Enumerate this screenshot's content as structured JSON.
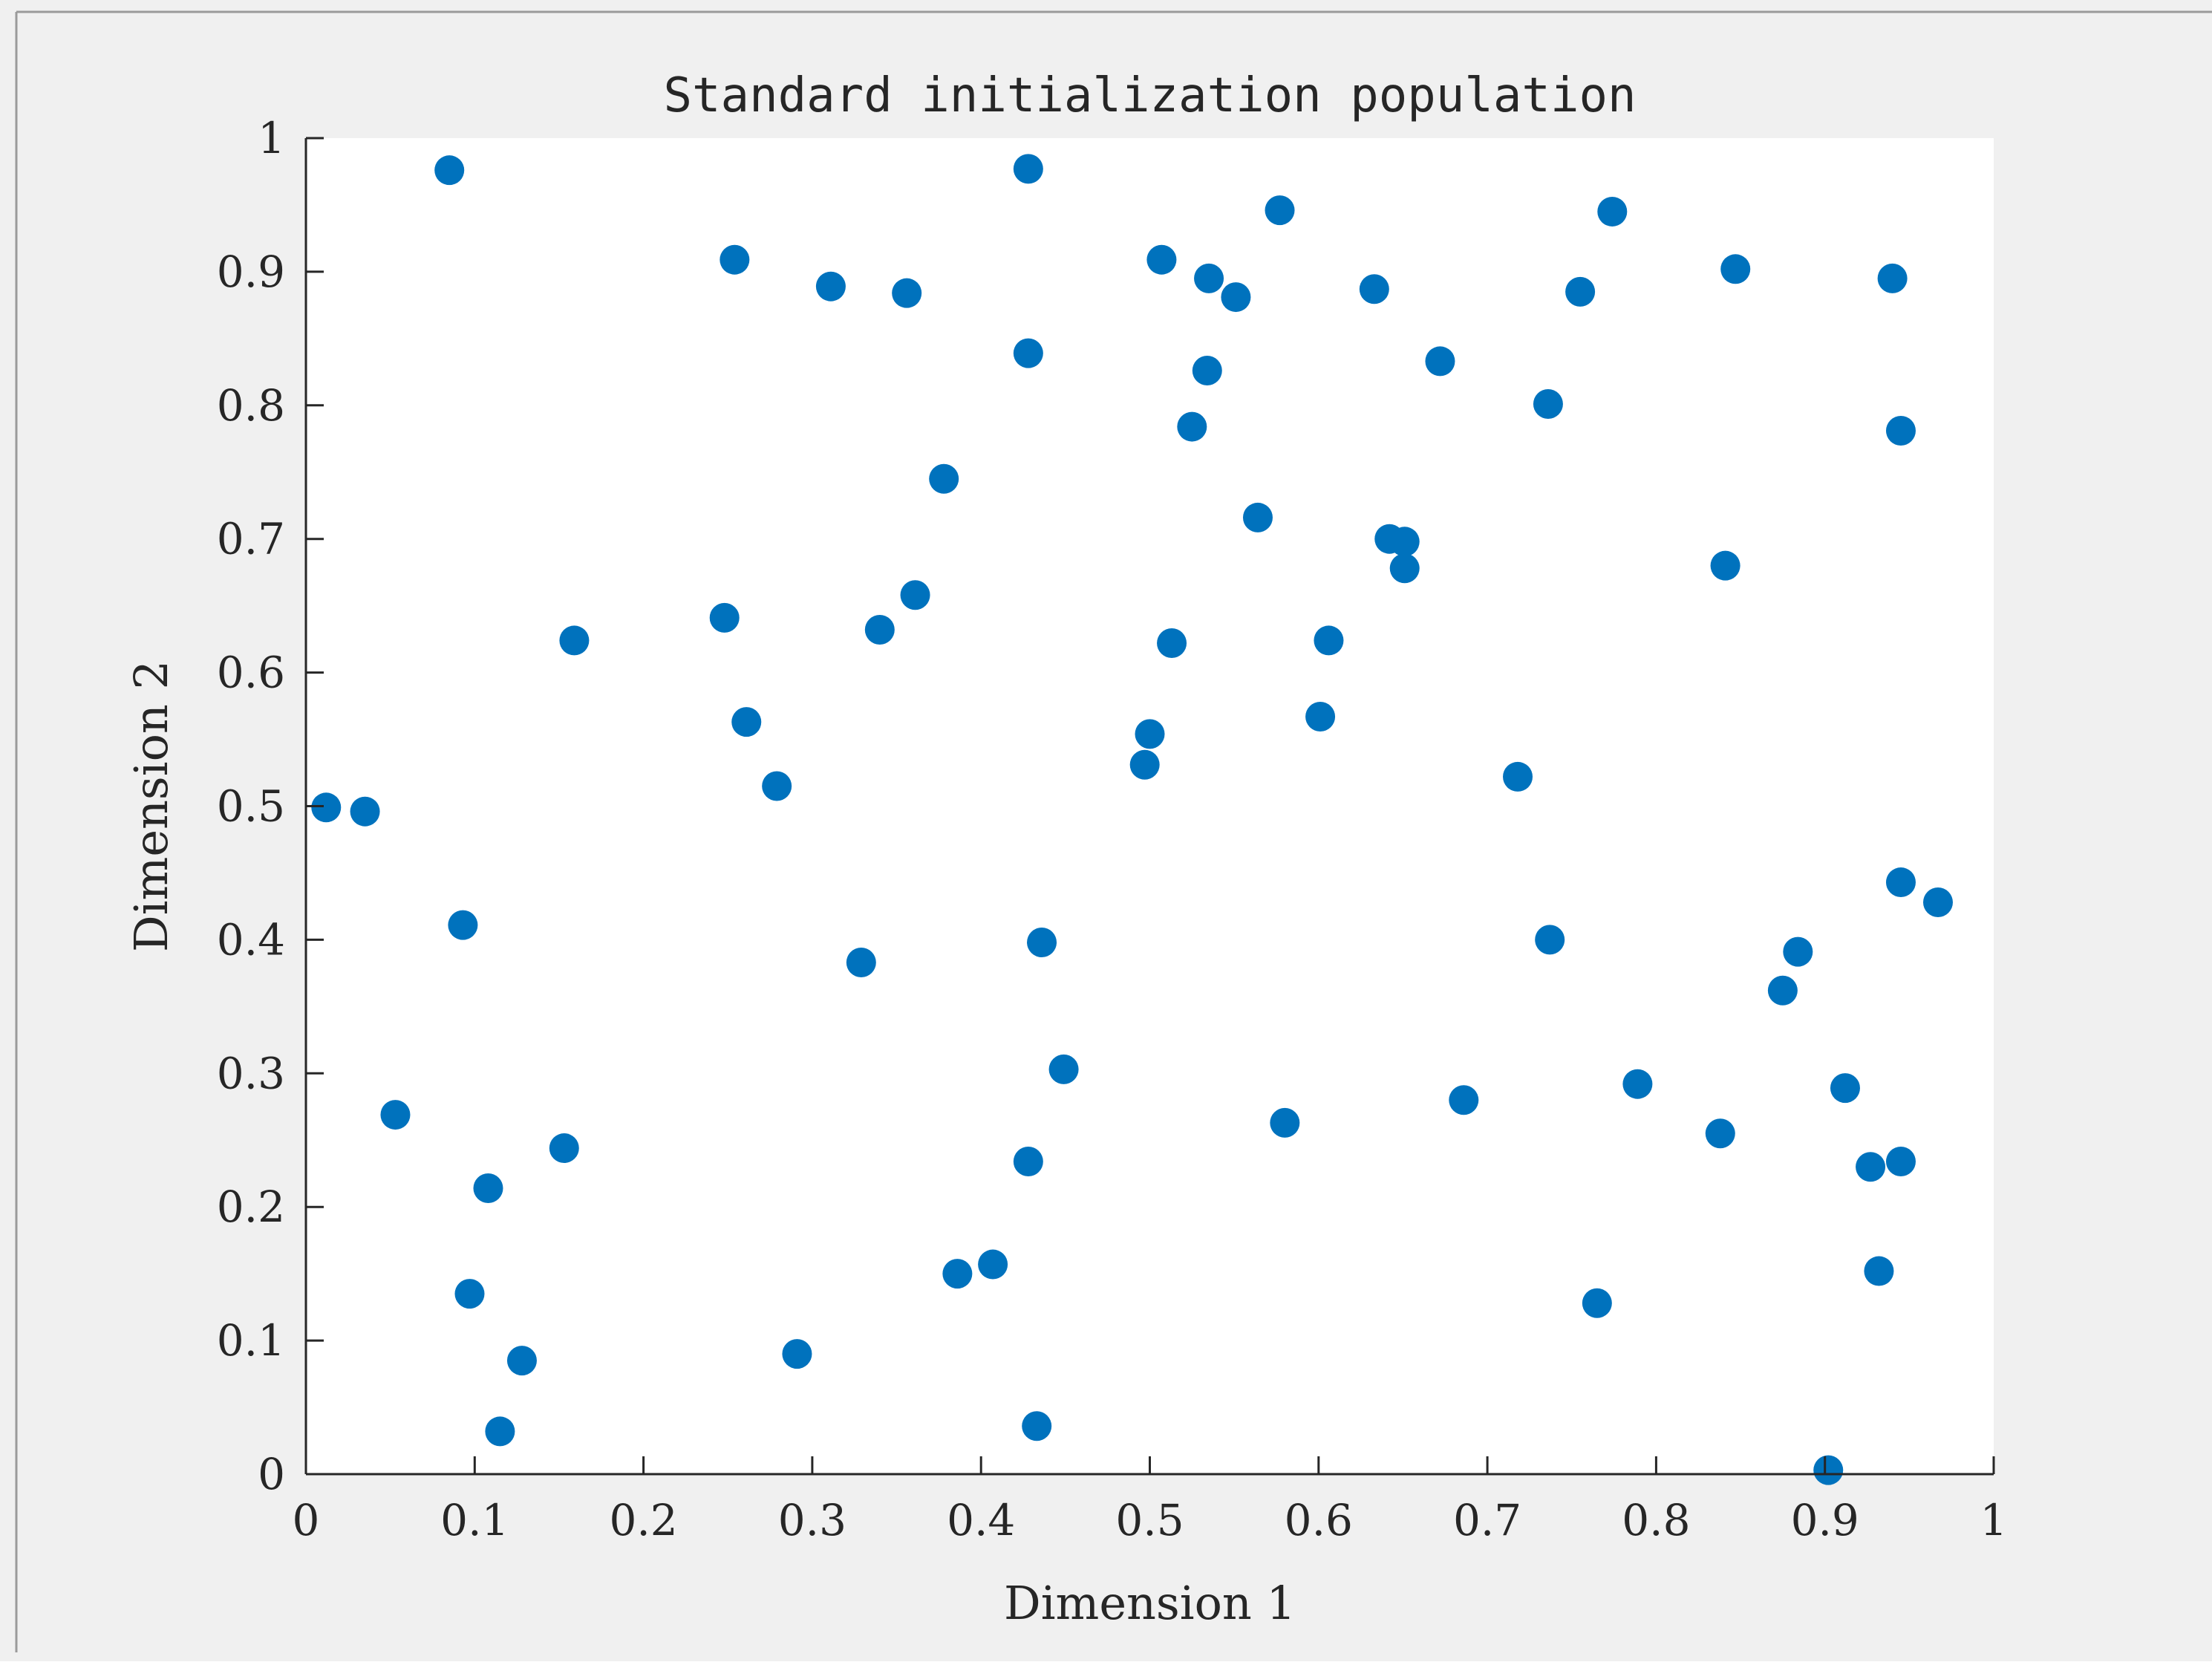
{
  "chart_data": {
    "type": "scatter",
    "title": "Standard initialization population",
    "xlabel": "Dimension 1",
    "ylabel": "Dimension 2",
    "xlim": [
      0,
      1
    ],
    "ylim": [
      0,
      1
    ],
    "xticks": [
      "0",
      "0.1",
      "0.2",
      "0.3",
      "0.4",
      "0.5",
      "0.6",
      "0.7",
      "0.8",
      "0.9",
      "1"
    ],
    "yticks": [
      "0",
      "0.1",
      "0.2",
      "0.3",
      "0.4",
      "0.5",
      "0.6",
      "0.7",
      "0.8",
      "0.9",
      "1"
    ],
    "grid": false,
    "marker_color": "#0072BD",
    "figure_background": "#F0F0F0",
    "axes_background": "#FFFFFF",
    "series": [
      {
        "x": [
          0.085,
          0.428,
          0.254,
          0.311,
          0.356,
          0.428,
          0.507,
          0.535,
          0.551,
          0.577,
          0.633,
          0.672,
          0.736,
          0.755,
          0.774,
          0.847,
          0.94,
          0.945,
          0.378,
          0.564,
          0.642,
          0.651,
          0.651,
          0.841,
          0.534,
          0.525,
          0.159,
          0.248,
          0.34,
          0.361,
          0.261,
          0.513,
          0.606,
          0.601,
          0.5,
          0.497,
          0.279,
          0.012,
          0.035,
          0.718,
          0.945,
          0.967,
          0.093,
          0.329,
          0.436,
          0.737,
          0.884,
          0.875,
          0.053,
          0.449,
          0.58,
          0.686,
          0.789,
          0.912,
          0.838,
          0.927,
          0.945,
          0.153,
          0.108,
          0.428,
          0.097,
          0.386,
          0.407,
          0.932,
          0.765,
          0.128,
          0.291,
          0.115,
          0.433,
          0.902
        ],
        "y": [
          0.976,
          0.977,
          0.909,
          0.889,
          0.884,
          0.839,
          0.909,
          0.895,
          0.881,
          0.946,
          0.887,
          0.833,
          0.801,
          0.885,
          0.945,
          0.902,
          0.895,
          0.781,
          0.745,
          0.716,
          0.7,
          0.698,
          0.678,
          0.68,
          0.826,
          0.784,
          0.624,
          0.641,
          0.632,
          0.658,
          0.563,
          0.622,
          0.624,
          0.567,
          0.554,
          0.531,
          0.515,
          0.499,
          0.496,
          0.522,
          0.443,
          0.428,
          0.411,
          0.383,
          0.398,
          0.4,
          0.391,
          0.362,
          0.269,
          0.303,
          0.263,
          0.28,
          0.292,
          0.289,
          0.255,
          0.23,
          0.234,
          0.244,
          0.214,
          0.234,
          0.135,
          0.15,
          0.157,
          0.152,
          0.128,
          0.085,
          0.09,
          0.032,
          0.036,
          0.003
        ]
      }
    ]
  }
}
